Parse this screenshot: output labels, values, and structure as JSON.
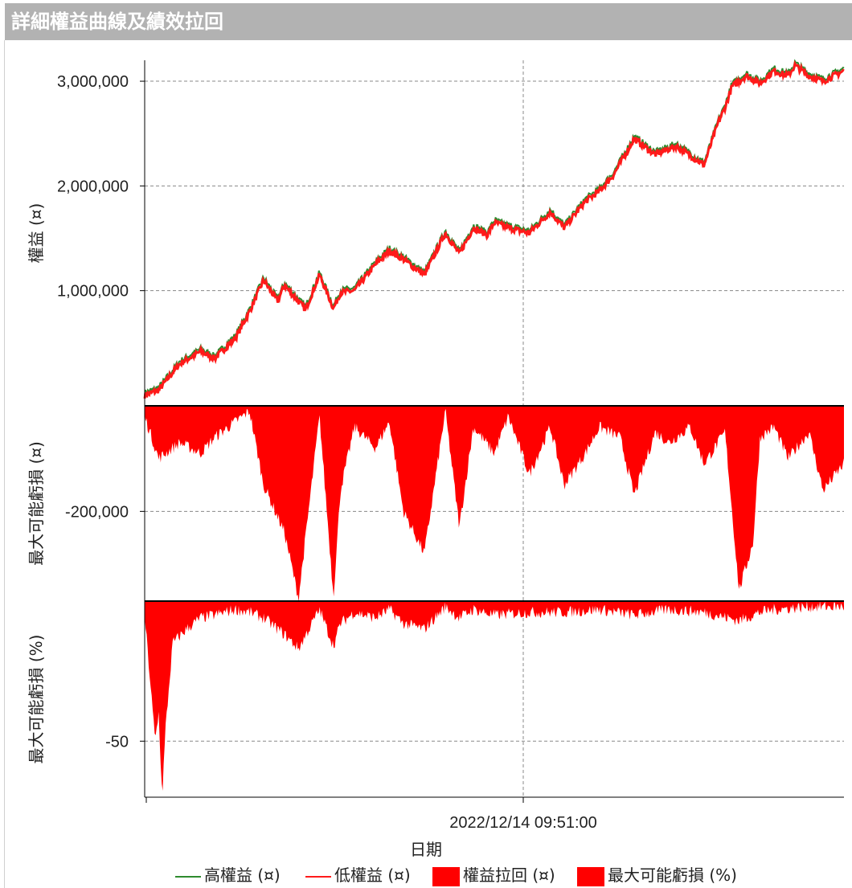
{
  "window": {
    "title": "詳細權益曲線及績效拉回"
  },
  "colors": {
    "high": "#2e8b2e",
    "low": "#ff1a1a",
    "fill": "#ff0000",
    "grid": "#777777"
  },
  "chart_data": [
    {
      "type": "line",
      "ylabel": "權益 (¤)",
      "y_ticks": [
        {
          "v": 3000000,
          "label": "3,000,000"
        },
        {
          "v": 2000000,
          "label": "2,000,000"
        },
        {
          "v": 1000000,
          "label": "1,000,000"
        }
      ],
      "ylim": [
        -100000,
        3200000
      ],
      "series": [
        {
          "name": "高權益 (¤)",
          "color": "#2e8b2e"
        },
        {
          "name": "低權益 (¤)",
          "color": "#ff1a1a"
        }
      ],
      "x": [
        0,
        0.02,
        0.05,
        0.08,
        0.1,
        0.13,
        0.15,
        0.17,
        0.19,
        0.2,
        0.23,
        0.25,
        0.27,
        0.28,
        0.3,
        0.33,
        0.35,
        0.37,
        0.4,
        0.43,
        0.45,
        0.47,
        0.49,
        0.5,
        0.52,
        0.55,
        0.58,
        0.6,
        0.63,
        0.65,
        0.67,
        0.7,
        0.73,
        0.76,
        0.8,
        0.82,
        0.83,
        0.84,
        0.86,
        0.88,
        0.9,
        0.92,
        0.93,
        0.95,
        0.97,
        1.0
      ],
      "values": [
        0,
        50000,
        300000,
        420000,
        350000,
        550000,
        800000,
        1100000,
        900000,
        1050000,
        820000,
        1150000,
        830000,
        980000,
        1000000,
        1250000,
        1380000,
        1300000,
        1150000,
        1550000,
        1350000,
        1600000,
        1530000,
        1650000,
        1600000,
        1550000,
        1750000,
        1600000,
        1850000,
        1950000,
        2100000,
        2450000,
        2300000,
        2380000,
        2200000,
        2600000,
        2750000,
        2950000,
        3050000,
        2980000,
        3100000,
        3050000,
        3150000,
        3050000,
        3000000,
        3100000
      ]
    },
    {
      "type": "area",
      "ylabel": "最大可能虧損 (¤)",
      "y_ticks": [
        {
          "v": -200000,
          "label": "-200,000"
        }
      ],
      "ylim": [
        -370000,
        0
      ],
      "series": [
        {
          "name": "權益拉回 (¤)",
          "color": "#ff0000"
        }
      ],
      "x": [
        0,
        0.02,
        0.05,
        0.08,
        0.1,
        0.13,
        0.15,
        0.17,
        0.2,
        0.22,
        0.25,
        0.27,
        0.28,
        0.3,
        0.33,
        0.35,
        0.37,
        0.4,
        0.43,
        0.45,
        0.47,
        0.5,
        0.52,
        0.55,
        0.58,
        0.6,
        0.63,
        0.65,
        0.68,
        0.7,
        0.73,
        0.75,
        0.78,
        0.8,
        0.83,
        0.85,
        0.87,
        0.88,
        0.9,
        0.92,
        0.95,
        0.97,
        1.0
      ],
      "values": [
        -20000,
        -100000,
        -70000,
        -90000,
        -60000,
        -30000,
        -10000,
        -150000,
        -240000,
        -365000,
        -20000,
        -360000,
        -160000,
        -40000,
        -80000,
        -30000,
        -200000,
        -280000,
        -10000,
        -230000,
        -40000,
        -90000,
        -20000,
        -130000,
        -40000,
        -150000,
        -90000,
        -40000,
        -60000,
        -170000,
        -50000,
        -70000,
        -40000,
        -110000,
        -50000,
        -350000,
        -260000,
        -60000,
        -40000,
        -100000,
        -50000,
        -160000,
        -110000
      ]
    },
    {
      "type": "area",
      "ylabel": "最大可能虧損 (%)",
      "y_ticks": [
        {
          "v": -50,
          "label": "-50"
        }
      ],
      "ylim": [
        -70,
        0
      ],
      "series": [
        {
          "name": "最大可能虧損 (%)",
          "color": "#ff0000"
        }
      ],
      "x": [
        0,
        0.005,
        0.01,
        0.015,
        0.02,
        0.025,
        0.03,
        0.035,
        0.04,
        0.06,
        0.08,
        0.1,
        0.13,
        0.15,
        0.17,
        0.2,
        0.22,
        0.25,
        0.27,
        0.28,
        0.3,
        0.33,
        0.35,
        0.37,
        0.4,
        0.43,
        0.45,
        0.47,
        0.5,
        0.55,
        0.6,
        0.65,
        0.7,
        0.75,
        0.8,
        0.85,
        0.88,
        0.9,
        0.95,
        1.0
      ],
      "values": [
        -5,
        -20,
        -35,
        -50,
        -40,
        -70,
        -45,
        -30,
        -15,
        -10,
        -6,
        -5,
        -3,
        -4,
        -6,
        -12,
        -17,
        -3,
        -16,
        -8,
        -4,
        -6,
        -3,
        -8,
        -10,
        -2,
        -6,
        -3,
        -5,
        -4,
        -4,
        -3,
        -5,
        -3,
        -4,
        -7,
        -4,
        -3,
        -2,
        -2
      ]
    }
  ],
  "xaxis": {
    "tick_label": "2022/12/14 09:51:00",
    "label": "日期"
  },
  "legend": [
    {
      "kind": "line",
      "color": "#2e8b2e",
      "label": "高權益 (¤)"
    },
    {
      "kind": "line",
      "color": "#ff1a1a",
      "label": "低權益 (¤)"
    },
    {
      "kind": "box",
      "color": "#ff0000",
      "label": "權益拉回 (¤)"
    },
    {
      "kind": "box",
      "color": "#ff0000",
      "label": "最大可能虧損 (%)"
    }
  ]
}
